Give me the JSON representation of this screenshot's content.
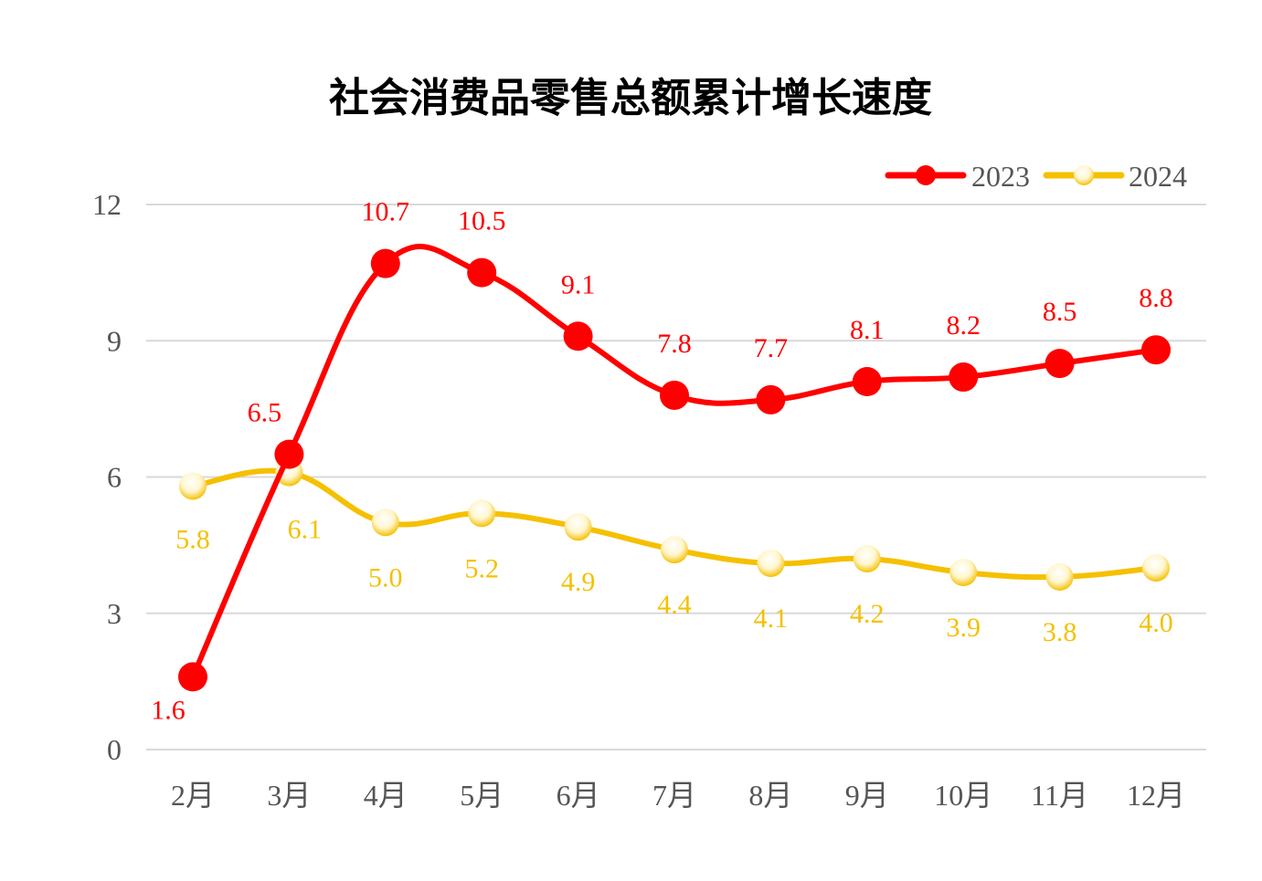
{
  "chart_data": {
    "type": "line",
    "title": "社会消费品零售总额累计增长速度",
    "categories": [
      "2月",
      "3月",
      "4月",
      "5月",
      "6月",
      "7月",
      "8月",
      "9月",
      "10月",
      "11月",
      "12月"
    ],
    "series": [
      {
        "name": "2023",
        "color": "#ff0000",
        "values": [
          1.6,
          6.5,
          10.7,
          10.5,
          9.1,
          7.8,
          7.7,
          8.1,
          8.2,
          8.5,
          8.8
        ]
      },
      {
        "name": "2024",
        "color": "#f5c000",
        "values": [
          5.8,
          6.1,
          5.0,
          5.2,
          4.9,
          4.4,
          4.1,
          4.2,
          3.9,
          3.8,
          4.0
        ]
      }
    ],
    "yticks": [
      "0",
      "3",
      "6",
      "9",
      "12"
    ],
    "ylim": [
      0,
      12
    ],
    "grid": true,
    "smooth": true,
    "data_labels": true,
    "legend": "top-right"
  }
}
